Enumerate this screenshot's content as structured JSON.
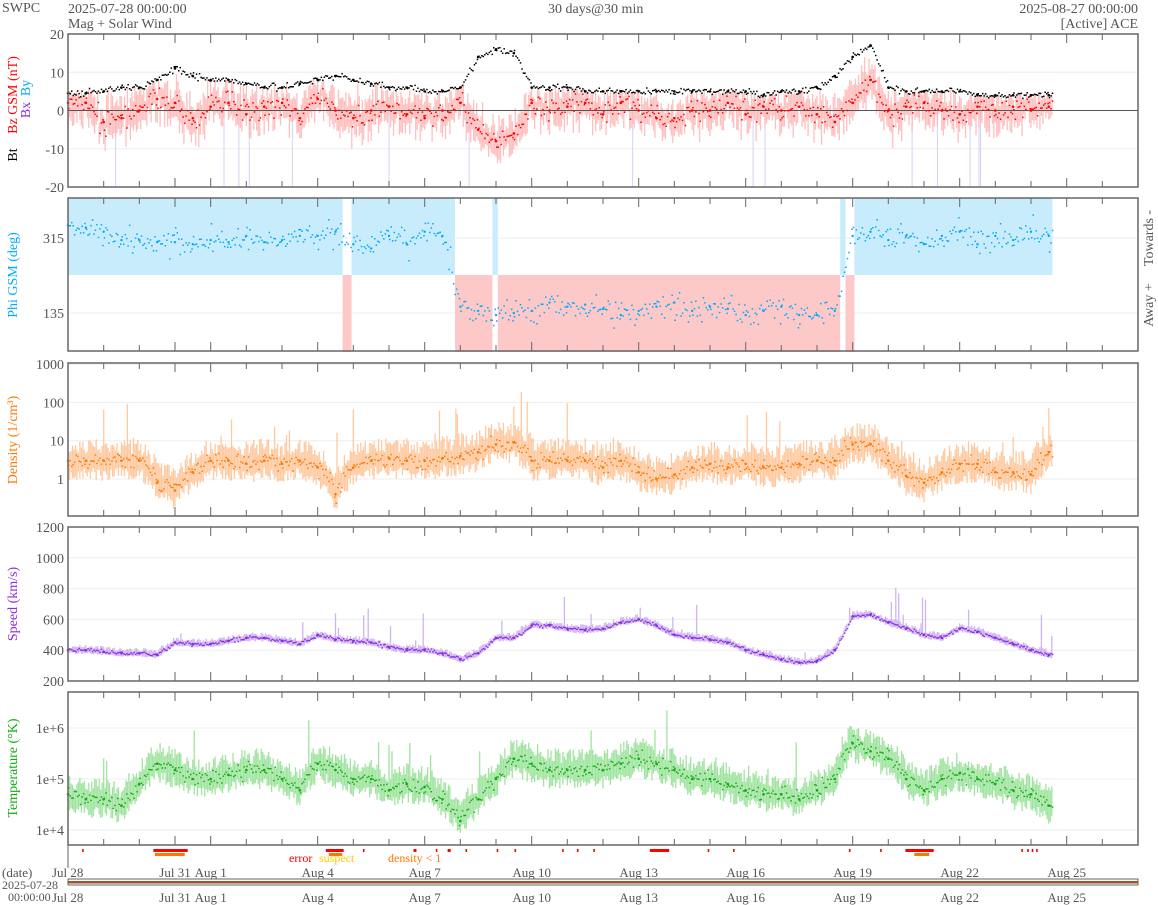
{
  "header": {
    "brand": "SWPC",
    "start_time": "2025-07-28 00:00:00",
    "subtitle": "Mag + Solar Wind",
    "span": "30 days@30 min",
    "end_time": "2025-08-27 00:00:00",
    "source": "[Active] ACE"
  },
  "colors": {
    "bt": "#000000",
    "bz": "#ff0000",
    "bx": "#8a2be2",
    "by": "#00aaff",
    "phi": "#00aaff",
    "toward": "#c8ecfb",
    "away": "#fcc8c8",
    "density": "#ff7700",
    "speed": "#8a2be2",
    "temperature": "#11aa11",
    "error": "#ff0000",
    "suspect": "#ffcc00",
    "density_low": "#ff7700",
    "timeline": "#a0522d"
  },
  "chart_data": [
    {
      "type": "line",
      "title": "Mag",
      "ylabel_parts": [
        "Bt",
        "Bz GSM (nT)",
        "Bx",
        "By"
      ],
      "ylim": [
        -20,
        20
      ],
      "yticks": [
        "20",
        "10",
        "0",
        "-10",
        "-20"
      ],
      "ytick_values": [
        20,
        10,
        0,
        -10,
        -20
      ],
      "x_step_days": 0.5,
      "series": [
        {
          "name": "Bt",
          "values": [
            4.5,
            4.5,
            5,
            6,
            6,
            8,
            11,
            9,
            8,
            8,
            7,
            6,
            6,
            7,
            8,
            9,
            8,
            7,
            6,
            6,
            5,
            5,
            6,
            14,
            16,
            15,
            6,
            6,
            6,
            5,
            5,
            5,
            5,
            5,
            5,
            5,
            5,
            5,
            5,
            4,
            5,
            5,
            6,
            9,
            14,
            17,
            6,
            5,
            5,
            5,
            5,
            4,
            4,
            4,
            4,
            4
          ]
        },
        {
          "name": "Bz",
          "values": [
            2,
            2,
            -3,
            -2,
            0,
            3,
            2,
            -2,
            1,
            2,
            -1,
            1,
            2,
            -2,
            3,
            0,
            -2,
            0,
            1,
            -1,
            -2,
            0,
            2,
            -5,
            -8,
            -6,
            2,
            0,
            1,
            2,
            -1,
            2,
            0,
            -2,
            -2,
            0,
            0,
            2,
            -1,
            1,
            0,
            1,
            -1,
            -3,
            2,
            8,
            0,
            1,
            2,
            0,
            -1,
            1,
            0,
            1,
            0,
            1
          ]
        }
      ]
    },
    {
      "type": "scatter",
      "title": "Phi",
      "ylabel": "Phi GSM (deg)",
      "right_labels": [
        "Towards -",
        "Away +"
      ],
      "yticks": [
        "315",
        "135"
      ],
      "ytick_values": [
        315,
        135
      ],
      "ylim": [
        44,
        411
      ],
      "x_step_days": 0.5,
      "values": [
        345,
        340,
        330,
        310,
        310,
        305,
        305,
        300,
        310,
        305,
        320,
        305,
        310,
        320,
        320,
        330,
        300,
        290,
        320,
        300,
        330,
        320,
        150,
        140,
        130,
        135,
        140,
        160,
        150,
        155,
        145,
        130,
        140,
        150,
        160,
        140,
        150,
        145,
        130,
        140,
        150,
        130,
        130,
        140,
        320,
        330,
        310,
        320,
        300,
        320,
        330,
        300,
        320,
        310,
        330,
        320
      ],
      "sectors": [
        [
          0,
          7.7,
          "toward"
        ],
        [
          7.7,
          7.95,
          "away"
        ],
        [
          7.95,
          10.85,
          "toward"
        ],
        [
          10.85,
          11.9,
          "away"
        ],
        [
          11.9,
          12.05,
          "toward"
        ],
        [
          12.05,
          21.65,
          "away"
        ],
        [
          21.65,
          21.8,
          "toward"
        ],
        [
          21.8,
          22.05,
          "away"
        ],
        [
          22.05,
          27.6,
          "toward"
        ]
      ]
    },
    {
      "type": "line",
      "title": "Density",
      "ylabel": "Density (1/cm³)",
      "yscale": "log",
      "ylim": [
        0.1,
        1000
      ],
      "yticks": [
        "1000",
        "100",
        "10",
        "1"
      ],
      "ytick_values": [
        1000,
        100,
        10,
        1
      ],
      "x_step_days": 0.5,
      "values": [
        3,
        3,
        3,
        3,
        3,
        0.8,
        0.5,
        1.5,
        3,
        3,
        2.5,
        3,
        2.5,
        3,
        2,
        0.4,
        2,
        3,
        3.5,
        3,
        3,
        3.5,
        4,
        5,
        8,
        9,
        3,
        3,
        3,
        3,
        2,
        3,
        1.5,
        1.0,
        1.3,
        2,
        2.5,
        2,
        2.5,
        2,
        2,
        2.5,
        3,
        3,
        8,
        8,
        3,
        1.2,
        0.8,
        1.5,
        2.5,
        2.5,
        1.5,
        1.5,
        1.3,
        5
      ]
    },
    {
      "type": "line",
      "title": "Speed",
      "ylabel": "Speed (km/s)",
      "ylim": [
        200,
        1200
      ],
      "yticks": [
        "1200",
        "1000",
        "800",
        "600",
        "400",
        "200"
      ],
      "ytick_values": [
        1200,
        1000,
        800,
        600,
        400,
        200
      ],
      "x_step_days": 0.5,
      "values": [
        400,
        400,
        390,
        380,
        380,
        370,
        450,
        440,
        440,
        460,
        480,
        480,
        460,
        440,
        500,
        470,
        460,
        450,
        420,
        400,
        400,
        380,
        340,
        380,
        480,
        480,
        560,
        560,
        540,
        530,
        540,
        580,
        600,
        560,
        500,
        480,
        470,
        450,
        400,
        370,
        340,
        320,
        330,
        400,
        620,
        630,
        580,
        540,
        500,
        480,
        540,
        520,
        480,
        440,
        400,
        370
      ]
    },
    {
      "type": "line",
      "title": "Temperature",
      "ylabel": "Temperature (°K)",
      "yscale": "log",
      "ylim": [
        5000,
        5000000
      ],
      "yticks": [
        "1e+6",
        "1e+5",
        "1e+4"
      ],
      "ytick_values": [
        1000000,
        100000,
        10000
      ],
      "x_step_days": 0.5,
      "values": [
        50000,
        40000,
        40000,
        30000,
        80000,
        200000,
        150000,
        100000,
        100000,
        120000,
        150000,
        150000,
        100000,
        60000,
        200000,
        150000,
        100000,
        100000,
        60000,
        80000,
        70000,
        40000,
        15000,
        40000,
        100000,
        250000,
        200000,
        150000,
        150000,
        150000,
        150000,
        200000,
        250000,
        200000,
        150000,
        100000,
        100000,
        80000,
        60000,
        50000,
        50000,
        40000,
        60000,
        100000,
        500000,
        350000,
        250000,
        100000,
        60000,
        100000,
        130000,
        100000,
        80000,
        60000,
        50000,
        30000
      ]
    }
  ],
  "status_legend": [
    "error",
    "suspect",
    "density < 1"
  ],
  "xaxis": {
    "ylabel_top": "(date)",
    "ylabel_bottom_1": "2025-07-28",
    "ylabel_bottom_2": "00:00:00",
    "ticks": [
      {
        "label": "Jul 28",
        "day": 0
      },
      {
        "label": "Jul 31",
        "day": 3
      },
      {
        "label": "Aug 1",
        "day": 4
      },
      {
        "label": "Aug 4",
        "day": 7
      },
      {
        "label": "Aug 7",
        "day": 10
      },
      {
        "label": "Aug 10",
        "day": 13
      },
      {
        "label": "Aug 13",
        "day": 16
      },
      {
        "label": "Aug 16",
        "day": 19
      },
      {
        "label": "Aug 19",
        "day": 22
      },
      {
        "label": "Aug 22",
        "day": 25
      },
      {
        "label": "Aug 25",
        "day": 28
      }
    ]
  }
}
